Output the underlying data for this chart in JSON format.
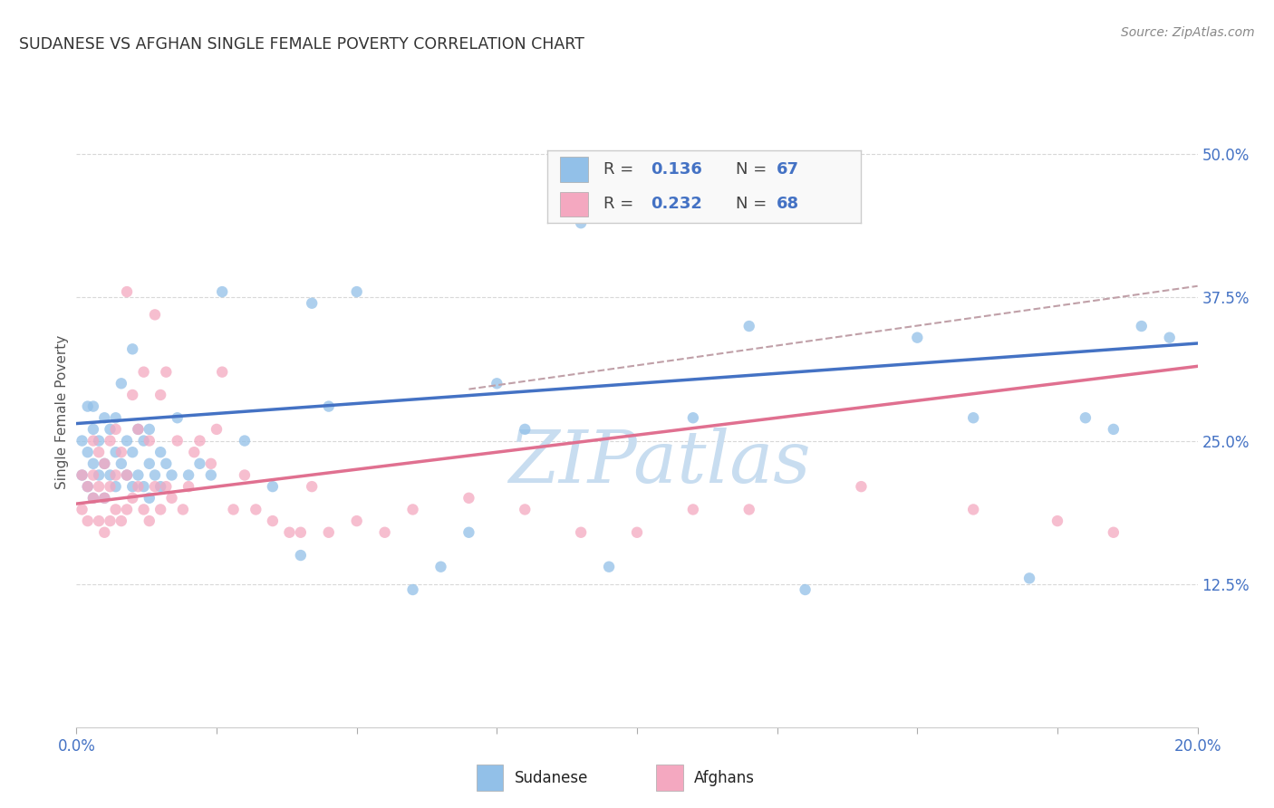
{
  "title": "SUDANESE VS AFGHAN SINGLE FEMALE POVERTY CORRELATION CHART",
  "source": "Source: ZipAtlas.com",
  "ylabel": "Single Female Poverty",
  "xlim": [
    0.0,
    0.2
  ],
  "ylim": [
    0.0,
    0.55
  ],
  "xticks": [
    0.0,
    0.025,
    0.05,
    0.075,
    0.1,
    0.125,
    0.15,
    0.175,
    0.2
  ],
  "xticklabels_show": {
    "0.0": "0.0%",
    "0.20": "20.0%"
  },
  "yticks_right": [
    0.125,
    0.25,
    0.375,
    0.5
  ],
  "ytick_right_labels": [
    "12.5%",
    "25.0%",
    "37.5%",
    "50.0%"
  ],
  "sudanese_color": "#92c0e8",
  "afghan_color": "#f4a8c0",
  "sudanese_R": 0.136,
  "sudanese_N": 67,
  "afghan_R": 0.232,
  "afghan_N": 68,
  "sudanese_line_color": "#4472c4",
  "afghan_line_color": "#e07090",
  "dashed_line_color": "#c0a0a8",
  "watermark_color": "#c8ddf0",
  "background_color": "#ffffff",
  "grid_color": "#d8d8d8",
  "tick_color": "#4472c4",
  "sudanese_x": [
    0.001,
    0.001,
    0.002,
    0.002,
    0.002,
    0.003,
    0.003,
    0.003,
    0.003,
    0.004,
    0.004,
    0.005,
    0.005,
    0.005,
    0.006,
    0.006,
    0.007,
    0.007,
    0.007,
    0.008,
    0.008,
    0.009,
    0.009,
    0.01,
    0.01,
    0.01,
    0.011,
    0.011,
    0.012,
    0.012,
    0.013,
    0.013,
    0.013,
    0.014,
    0.015,
    0.015,
    0.016,
    0.017,
    0.018,
    0.02,
    0.022,
    0.024,
    0.026,
    0.03,
    0.035,
    0.04,
    0.042,
    0.045,
    0.05,
    0.06,
    0.065,
    0.07,
    0.075,
    0.08,
    0.09,
    0.095,
    0.1,
    0.11,
    0.12,
    0.13,
    0.15,
    0.16,
    0.17,
    0.18,
    0.185,
    0.19,
    0.195
  ],
  "sudanese_y": [
    0.22,
    0.25,
    0.21,
    0.24,
    0.28,
    0.2,
    0.23,
    0.26,
    0.28,
    0.22,
    0.25,
    0.2,
    0.23,
    0.27,
    0.22,
    0.26,
    0.21,
    0.24,
    0.27,
    0.23,
    0.3,
    0.22,
    0.25,
    0.21,
    0.24,
    0.33,
    0.22,
    0.26,
    0.21,
    0.25,
    0.2,
    0.23,
    0.26,
    0.22,
    0.21,
    0.24,
    0.23,
    0.22,
    0.27,
    0.22,
    0.23,
    0.22,
    0.38,
    0.25,
    0.21,
    0.15,
    0.37,
    0.28,
    0.38,
    0.12,
    0.14,
    0.17,
    0.3,
    0.26,
    0.44,
    0.14,
    0.47,
    0.27,
    0.35,
    0.12,
    0.34,
    0.27,
    0.13,
    0.27,
    0.26,
    0.35,
    0.34
  ],
  "afghan_x": [
    0.001,
    0.001,
    0.002,
    0.002,
    0.003,
    0.003,
    0.003,
    0.004,
    0.004,
    0.004,
    0.005,
    0.005,
    0.005,
    0.006,
    0.006,
    0.006,
    0.007,
    0.007,
    0.007,
    0.008,
    0.008,
    0.009,
    0.009,
    0.009,
    0.01,
    0.01,
    0.011,
    0.011,
    0.012,
    0.012,
    0.013,
    0.013,
    0.014,
    0.014,
    0.015,
    0.015,
    0.016,
    0.016,
    0.017,
    0.018,
    0.019,
    0.02,
    0.021,
    0.022,
    0.024,
    0.025,
    0.026,
    0.028,
    0.03,
    0.032,
    0.035,
    0.038,
    0.04,
    0.042,
    0.045,
    0.05,
    0.055,
    0.06,
    0.07,
    0.08,
    0.09,
    0.1,
    0.11,
    0.12,
    0.14,
    0.16,
    0.175,
    0.185
  ],
  "afghan_y": [
    0.19,
    0.22,
    0.18,
    0.21,
    0.2,
    0.22,
    0.25,
    0.18,
    0.21,
    0.24,
    0.17,
    0.2,
    0.23,
    0.18,
    0.21,
    0.25,
    0.19,
    0.22,
    0.26,
    0.18,
    0.24,
    0.19,
    0.22,
    0.38,
    0.2,
    0.29,
    0.21,
    0.26,
    0.19,
    0.31,
    0.18,
    0.25,
    0.21,
    0.36,
    0.19,
    0.29,
    0.21,
    0.31,
    0.2,
    0.25,
    0.19,
    0.21,
    0.24,
    0.25,
    0.23,
    0.26,
    0.31,
    0.19,
    0.22,
    0.19,
    0.18,
    0.17,
    0.17,
    0.21,
    0.17,
    0.18,
    0.17,
    0.19,
    0.2,
    0.19,
    0.17,
    0.17,
    0.19,
    0.19,
    0.21,
    0.19,
    0.18,
    0.17
  ]
}
